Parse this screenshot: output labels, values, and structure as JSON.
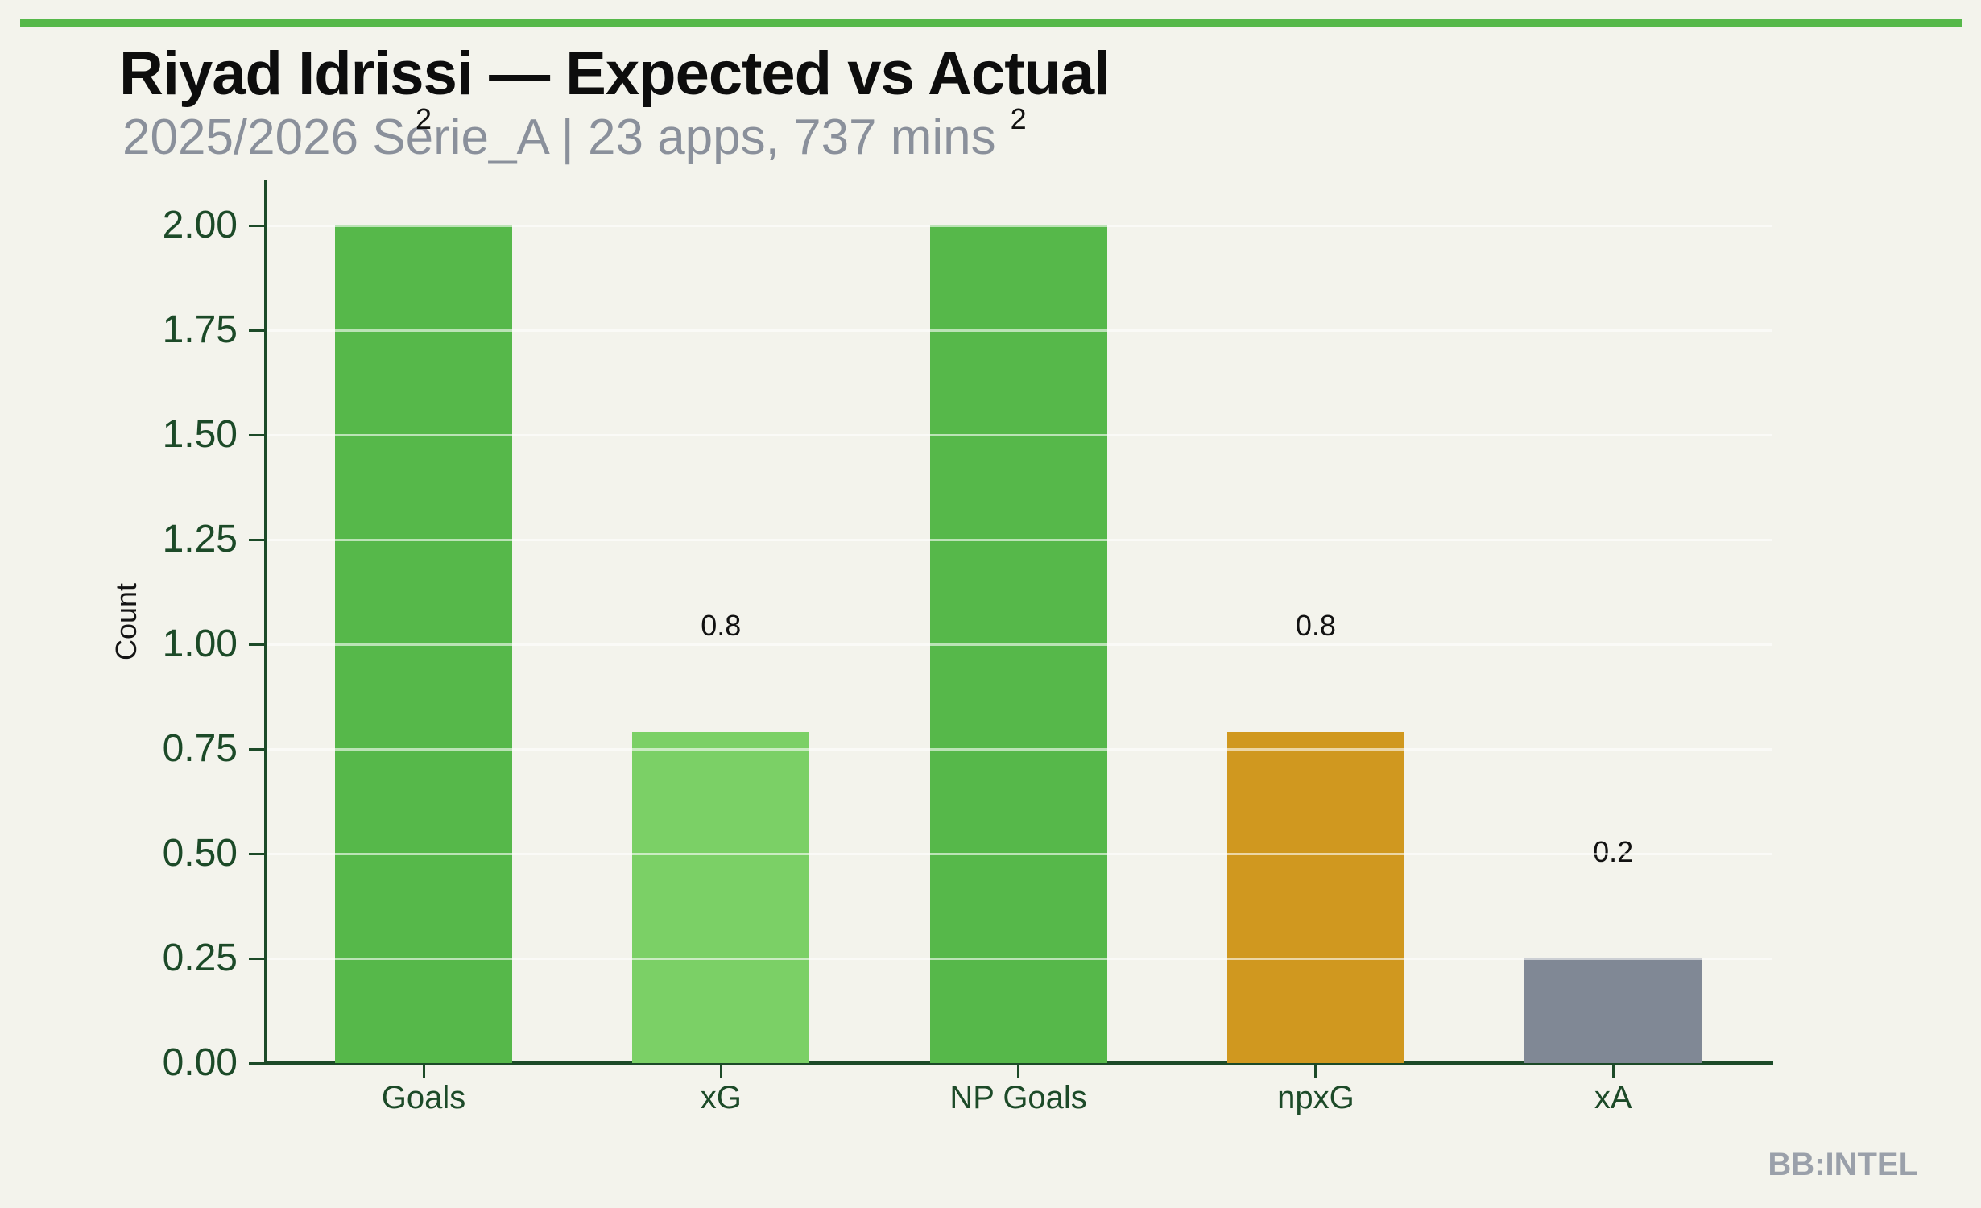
{
  "header": {
    "title": "Riyad Idrissi — Expected vs Actual",
    "subtitle": "2025/2026 Serie_A | 23 apps, 737 mins"
  },
  "footer": {
    "watermark": "BB:INTEL"
  },
  "chart_data": {
    "type": "bar",
    "title": "Riyad Idrissi — Expected vs Actual",
    "subtitle": "2025/2026 Serie_A | 23 apps, 737 mins",
    "xlabel": "",
    "ylabel": "Count",
    "categories": [
      "Goals",
      "xG",
      "NP Goals",
      "npxG",
      "xA"
    ],
    "values": [
      2.0,
      0.79,
      2.0,
      0.79,
      0.25
    ],
    "bar_value_labels": [
      "2",
      "0.8",
      "2",
      "0.8",
      "0.2"
    ],
    "bar_colors": [
      "#56b84a",
      "#7bd066",
      "#56b84a",
      "#d0981f",
      "#808895"
    ],
    "ylim": [
      0,
      2.11
    ],
    "yticks": [
      "0.00",
      "0.25",
      "0.50",
      "0.75",
      "1.00",
      "1.25",
      "1.50",
      "1.75",
      "2.00"
    ],
    "grid": "horizontal gridlines at each 0.25, faint white, drawn over bars",
    "legend": "none",
    "colors": {
      "background": "#f3f3ec",
      "accent_banner_green": "#56b84a",
      "axis_dark_green": "#1c4a28",
      "subtitle_gray": "#8a909b",
      "watermark_gray": "#9aa0aa",
      "bar_label_black": "#111111"
    }
  }
}
